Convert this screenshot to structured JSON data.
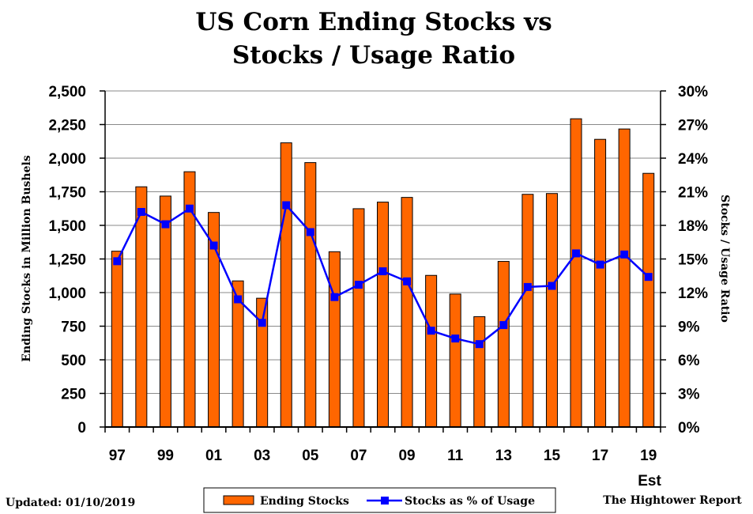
{
  "chart_data": {
    "type": "bar",
    "title_lines": [
      "US Corn Ending Stocks vs",
      "Stocks / Usage Ratio"
    ],
    "ylabel_left": "Ending Stocks in Million Bushels",
    "ylabel_right": "Stocks / Usage Ratio",
    "ylim_left": [
      0,
      2500
    ],
    "ylim_right": [
      0,
      30
    ],
    "yticks_left": [
      "0",
      "250",
      "500",
      "750",
      "1,000",
      "1,250",
      "1,500",
      "1,750",
      "2,000",
      "2,250",
      "2,500"
    ],
    "yticks_right": [
      "0%",
      "3%",
      "6%",
      "9%",
      "12%",
      "15%",
      "18%",
      "21%",
      "24%",
      "27%",
      "30%"
    ],
    "x_labels": [
      "97",
      "99",
      "01",
      "03",
      "05",
      "07",
      "09",
      "11",
      "13",
      "15",
      "17",
      "19"
    ],
    "x_sub_label": "Est",
    "categories": [
      "1997",
      "1998",
      "1999",
      "2000",
      "2001",
      "2002",
      "2003",
      "2004",
      "2005",
      "2006",
      "2007",
      "2008",
      "2009",
      "2010",
      "2011",
      "2012",
      "2013",
      "2014",
      "2015",
      "2016",
      "2017",
      "2018",
      "2019"
    ],
    "grid": true,
    "legend_position": "bottom",
    "series": [
      {
        "name": "Ending Stocks",
        "type": "bar",
        "axis": "left",
        "color": "#ff6600",
        "values": [
          1308,
          1787,
          1718,
          1899,
          1596,
          1087,
          958,
          2114,
          1967,
          1304,
          1624,
          1673,
          1708,
          1128,
          989,
          821,
          1232,
          1731,
          1737,
          2293,
          2140,
          2217,
          1887
        ]
      },
      {
        "name": "Stocks as % of Usage",
        "type": "line",
        "axis": "right",
        "color": "#0000ff",
        "values": [
          14.8,
          19.2,
          18.1,
          19.5,
          16.2,
          11.4,
          9.3,
          19.8,
          17.4,
          11.6,
          12.7,
          13.9,
          13.0,
          8.6,
          7.9,
          7.4,
          9.1,
          12.5,
          12.6,
          15.5,
          14.5,
          15.4,
          13.4
        ]
      }
    ]
  },
  "footer": {
    "updated": "Updated:  01/10/2019",
    "source": "The Hightower Report"
  }
}
